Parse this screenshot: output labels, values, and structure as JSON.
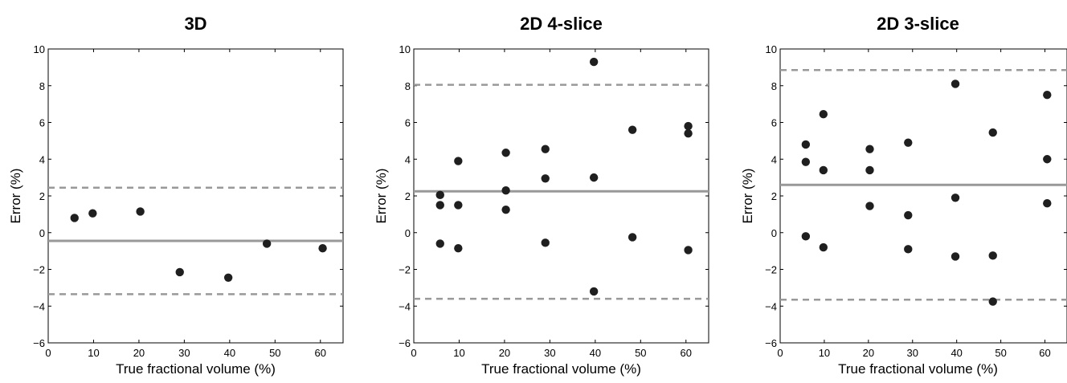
{
  "chart_data": [
    {
      "type": "scatter",
      "title": "3D",
      "xlabel": "True fractional volume (%)",
      "ylabel": "Error (%)",
      "xlim": [
        0,
        65
      ],
      "ylim": [
        -6,
        10
      ],
      "xticks": [
        "0",
        "10",
        "20",
        "30",
        "40",
        "50",
        "60"
      ],
      "yticks": [
        "−6",
        "−4",
        "−2",
        "0",
        "2",
        "4",
        "6",
        "8",
        "10"
      ],
      "mean_line": -0.45,
      "limits": [
        2.45,
        -3.35
      ],
      "points": [
        [
          5.8,
          0.8
        ],
        [
          9.8,
          1.05
        ],
        [
          20.3,
          1.15
        ],
        [
          29.0,
          -2.15
        ],
        [
          39.7,
          -2.45
        ],
        [
          48.2,
          -0.6
        ],
        [
          60.5,
          -0.85
        ]
      ]
    },
    {
      "type": "scatter",
      "title": "2D 4-slice",
      "xlabel": "True fractional volume (%)",
      "ylabel": "Error (%)",
      "xlim": [
        0,
        65
      ],
      "ylim": [
        -6,
        10
      ],
      "xticks": [
        "0",
        "10",
        "20",
        "30",
        "40",
        "50",
        "60"
      ],
      "yticks": [
        "−6",
        "−4",
        "−2",
        "0",
        "2",
        "4",
        "6",
        "8",
        "10"
      ],
      "mean_line": 2.25,
      "limits": [
        8.05,
        -3.6
      ],
      "points": [
        [
          5.8,
          2.05
        ],
        [
          5.8,
          1.5
        ],
        [
          5.8,
          -0.6
        ],
        [
          9.8,
          3.9
        ],
        [
          9.8,
          1.5
        ],
        [
          9.8,
          -0.85
        ],
        [
          20.3,
          4.35
        ],
        [
          20.3,
          2.3
        ],
        [
          20.3,
          1.25
        ],
        [
          29.0,
          4.55
        ],
        [
          29.0,
          2.95
        ],
        [
          29.0,
          -0.55
        ],
        [
          39.7,
          9.3
        ],
        [
          39.7,
          3.0
        ],
        [
          39.7,
          -3.2
        ],
        [
          48.2,
          5.6
        ],
        [
          48.2,
          -0.25
        ],
        [
          60.5,
          5.8
        ],
        [
          60.5,
          5.4
        ],
        [
          60.5,
          -0.95
        ]
      ]
    },
    {
      "type": "scatter",
      "title": "2D 3-slice",
      "xlabel": "True fractional volume (%)",
      "ylabel": "Error (%)",
      "xlim": [
        0,
        65
      ],
      "ylim": [
        -6,
        10
      ],
      "xticks": [
        "0",
        "10",
        "20",
        "30",
        "40",
        "50",
        "60"
      ],
      "yticks": [
        "−6",
        "−4",
        "−2",
        "0",
        "2",
        "4",
        "6",
        "8",
        "10"
      ],
      "mean_line": 2.6,
      "limits": [
        8.85,
        -3.65
      ],
      "points": [
        [
          5.8,
          4.8
        ],
        [
          5.8,
          3.85
        ],
        [
          5.8,
          -0.2
        ],
        [
          9.8,
          6.45
        ],
        [
          9.8,
          3.4
        ],
        [
          9.8,
          -0.8
        ],
        [
          20.3,
          4.55
        ],
        [
          20.3,
          3.4
        ],
        [
          20.3,
          1.45
        ],
        [
          29.0,
          4.9
        ],
        [
          29.0,
          0.95
        ],
        [
          29.0,
          -0.9
        ],
        [
          39.7,
          8.1
        ],
        [
          39.7,
          1.9
        ],
        [
          39.7,
          -1.3
        ],
        [
          48.2,
          5.45
        ],
        [
          48.2,
          -1.25
        ],
        [
          48.2,
          -3.75
        ],
        [
          60.5,
          7.5
        ],
        [
          60.5,
          4.0
        ],
        [
          60.5,
          1.6
        ]
      ]
    }
  ]
}
